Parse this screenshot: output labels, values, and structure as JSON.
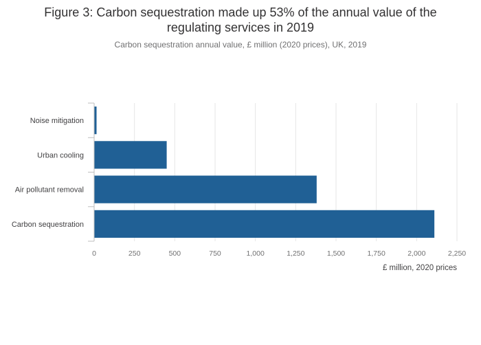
{
  "title_lines": [
    "Figure 3: Carbon sequestration made up 53% of the annual value of the",
    "regulating services in 2019"
  ],
  "subtitle": "Carbon sequestration annual value, £ million (2020 prices), UK, 2019",
  "colors": {
    "bar": "#206095",
    "grid": "#e6e6e6",
    "axis": "#bebebe"
  },
  "chart_data": {
    "type": "bar",
    "orientation": "horizontal",
    "categories": [
      "Carbon sequestration",
      "Air pollutant removal",
      "Urban cooling",
      "Noise mitigation"
    ],
    "values": [
      2110,
      1380,
      450,
      15
    ],
    "title": "Figure 3: Carbon sequestration made up 53% of the annual value of the regulating services in 2019",
    "subtitle": "Carbon sequestration annual value, £ million (2020 prices), UK, 2019",
    "xlabel": "£ million, 2020 prices",
    "ylabel": "",
    "xlim": [
      0,
      2250
    ],
    "xticks": [
      0,
      250,
      500,
      750,
      1000,
      1250,
      1500,
      1750,
      2000,
      2250
    ],
    "xtick_labels": [
      "0",
      "250",
      "500",
      "750",
      "1,000",
      "1,250",
      "1,500",
      "1,750",
      "2,000",
      "2,250"
    ],
    "grid": true,
    "legend": "none"
  }
}
